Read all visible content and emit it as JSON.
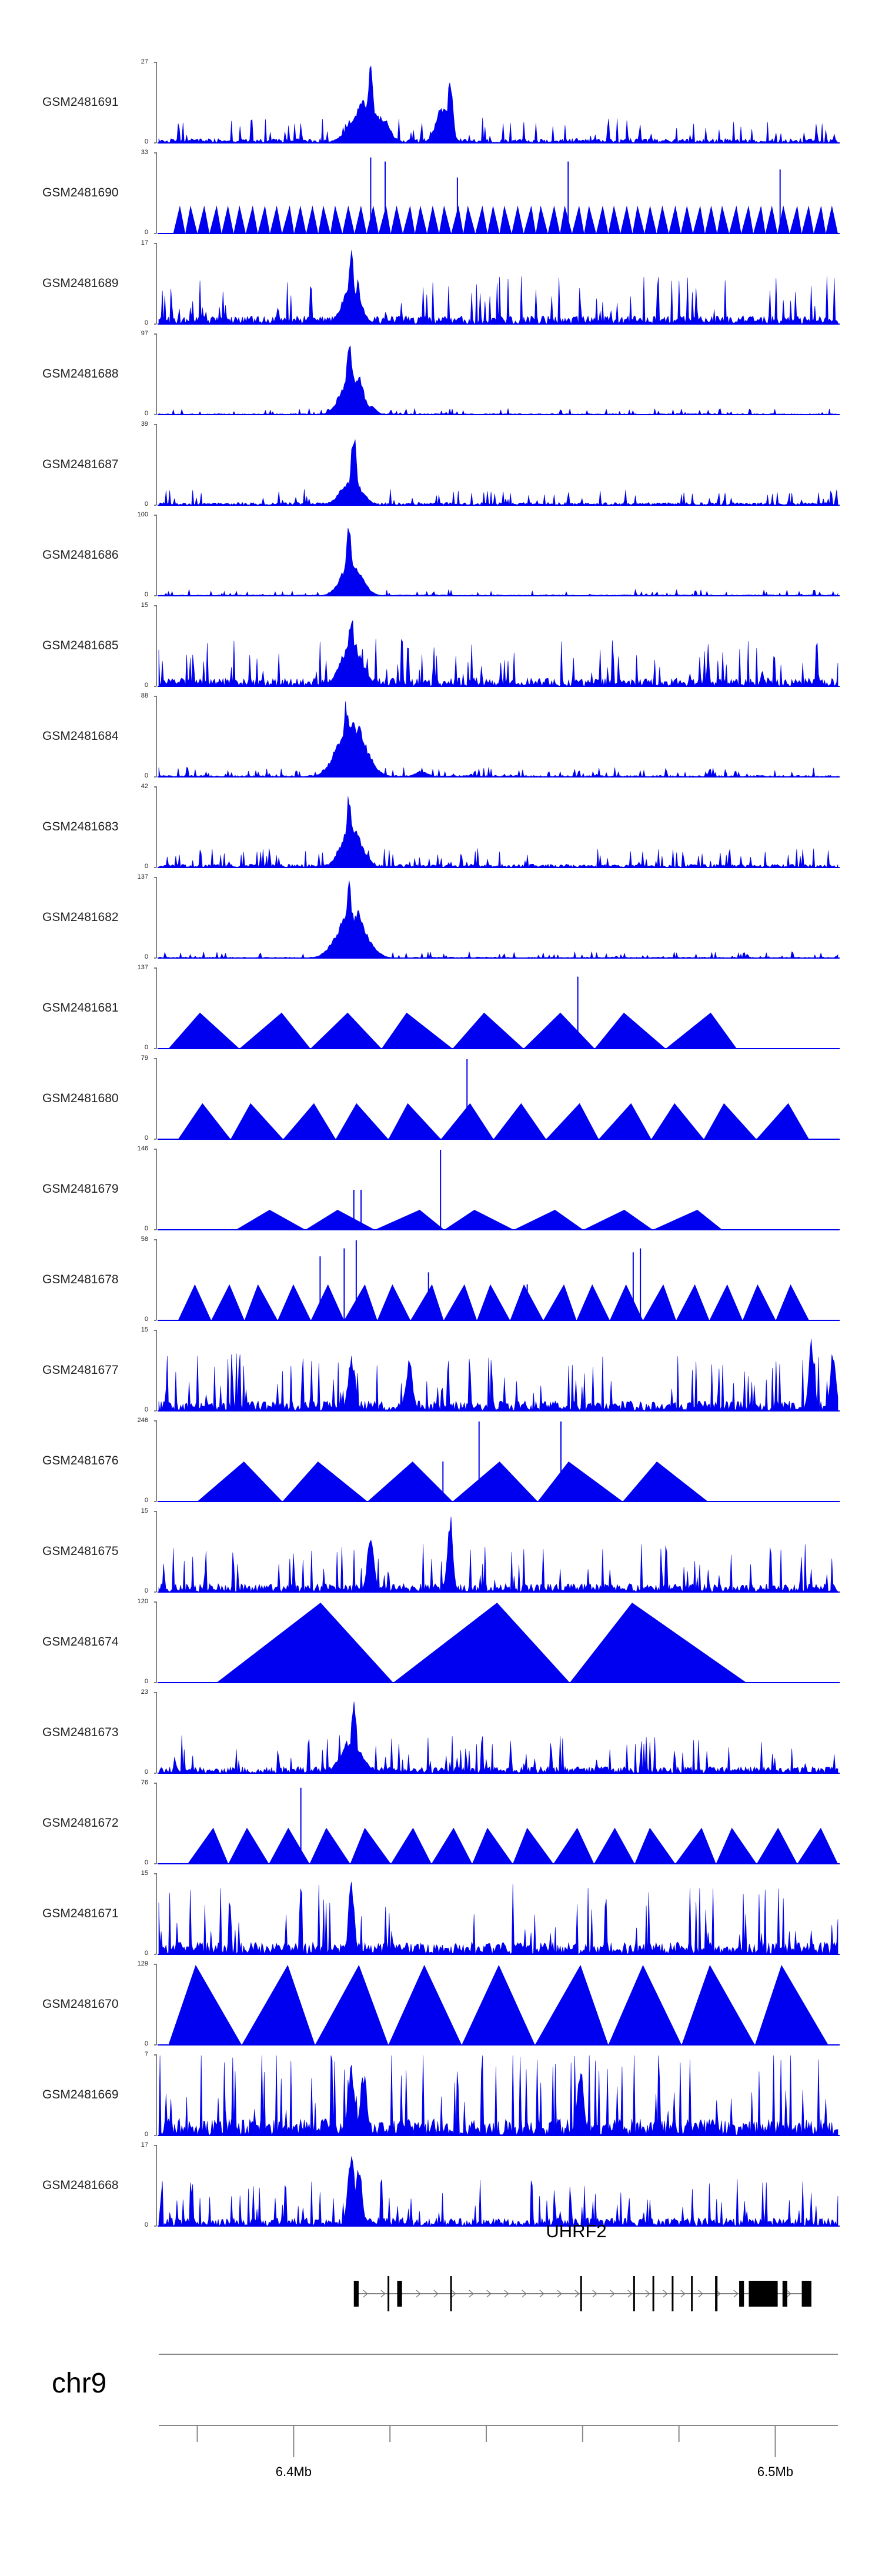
{
  "chart_data": {
    "type": "genome-coverage-tracks",
    "region": {
      "chromosome": "chr9",
      "start_mb": 6.372,
      "end_mb": 6.513
    },
    "tracks": [
      {
        "name": "GSM2481691",
        "ymax": 27,
        "ymin": 0,
        "kind": "noise",
        "base": 0.08,
        "peaks": [
          [
            6.415,
            0.55,
            0.004
          ],
          [
            6.416,
            1.0,
            0.0008
          ],
          [
            6.4185,
            0.35,
            0.002
          ],
          [
            6.431,
            0.5,
            0.002
          ],
          [
            6.4325,
            0.82,
            0.0008
          ]
        ]
      },
      {
        "name": "GSM2481690",
        "ymax": 33,
        "ymin": 0,
        "kind": "triangles",
        "tri_n": 55,
        "tri_h": 0.35,
        "start": 6.375,
        "end": 6.513,
        "spikes": [
          [
            6.416,
            0.95
          ],
          [
            6.419,
            0.9
          ],
          [
            6.434,
            0.7
          ],
          [
            6.457,
            0.9
          ],
          [
            6.501,
            0.8
          ]
        ]
      },
      {
        "name": "GSM2481689",
        "ymax": 17,
        "ymin": 0,
        "kind": "noise",
        "base": 0.15,
        "peaks": [
          [
            6.412,
            0.55,
            0.0025
          ],
          [
            6.412,
            1.0,
            0.0008
          ]
        ]
      },
      {
        "name": "GSM2481688",
        "ymax": 97,
        "ymin": 0,
        "kind": "noise",
        "base": 0.02,
        "peaks": [
          [
            6.412,
            0.55,
            0.003
          ],
          [
            6.4115,
            1.0,
            0.0008
          ],
          [
            6.4135,
            0.5,
            0.0015
          ],
          [
            6.416,
            0.12,
            0.0015
          ]
        ]
      },
      {
        "name": "GSM2481687",
        "ymax": 39,
        "ymin": 0,
        "kind": "noise",
        "base": 0.05,
        "peaks": [
          [
            6.412,
            0.35,
            0.003
          ],
          [
            6.4125,
            1.0,
            0.0008
          ]
        ]
      },
      {
        "name": "GSM2481686",
        "ymax": 100,
        "ymin": 0,
        "kind": "noise",
        "base": 0.02,
        "peaks": [
          [
            6.412,
            0.45,
            0.003
          ],
          [
            6.4115,
            1.0,
            0.0008
          ],
          [
            6.4135,
            0.35,
            0.0015
          ]
        ]
      },
      {
        "name": "GSM2481685",
        "ymax": 15,
        "ymin": 0,
        "kind": "noise",
        "base": 0.15,
        "peaks": [
          [
            6.412,
            0.6,
            0.003
          ],
          [
            6.412,
            1.0,
            0.0008
          ]
        ]
      },
      {
        "name": "GSM2481684",
        "ymax": 88,
        "ymin": 0,
        "kind": "noise",
        "base": 0.03,
        "peaks": [
          [
            6.412,
            0.75,
            0.004
          ],
          [
            6.411,
            1.0,
            0.001
          ],
          [
            6.4135,
            0.65,
            0.0015
          ],
          [
            6.416,
            0.12,
            0.0015
          ],
          [
            6.4265,
            0.07,
            0.002
          ]
        ]
      },
      {
        "name": "GSM2481683",
        "ymax": 42,
        "ymin": 0,
        "kind": "noise",
        "base": 0.06,
        "peaks": [
          [
            6.412,
            0.55,
            0.003
          ],
          [
            6.4115,
            1.0,
            0.0008
          ]
        ]
      },
      {
        "name": "GSM2481682",
        "ymax": 137,
        "ymin": 0,
        "kind": "noise",
        "base": 0.02,
        "peaks": [
          [
            6.412,
            0.6,
            0.004
          ],
          [
            6.4115,
            1.0,
            0.0008
          ],
          [
            6.4135,
            0.65,
            0.0015
          ],
          [
            6.416,
            0.1,
            0.0015
          ]
        ]
      },
      {
        "name": "GSM2481681",
        "ymax": 137,
        "ymin": 0,
        "kind": "triangles",
        "tri_n": 8,
        "tri_h": 0.45,
        "start": 6.374,
        "end": 6.492,
        "spikes": [
          [
            6.459,
            0.9
          ]
        ]
      },
      {
        "name": "GSM2481680",
        "ymax": 79,
        "ymin": 0,
        "kind": "triangles",
        "tri_n": 12,
        "tri_h": 0.45,
        "start": 6.376,
        "end": 6.507,
        "spikes": [
          [
            6.436,
            1.0
          ]
        ]
      },
      {
        "name": "GSM2481679",
        "ymax": 146,
        "ymin": 0,
        "kind": "triangles",
        "tri_n": 7,
        "tri_h": 0.25,
        "start": 6.388,
        "end": 6.489,
        "spikes": [
          [
            6.4125,
            0.5
          ],
          [
            6.414,
            0.5
          ],
          [
            6.4305,
            1.0
          ]
        ]
      },
      {
        "name": "GSM2481678",
        "ymax": 58,
        "ymin": 0,
        "kind": "triangles",
        "tri_n": 19,
        "tri_h": 0.45,
        "start": 6.376,
        "end": 6.507,
        "spikes": [
          [
            6.4055,
            0.8
          ],
          [
            6.4105,
            0.9
          ],
          [
            6.413,
            1.0
          ],
          [
            6.428,
            0.6
          ],
          [
            6.4485,
            0.45
          ],
          [
            6.4705,
            0.85
          ],
          [
            6.472,
            0.9
          ]
        ]
      },
      {
        "name": "GSM2481677",
        "ymax": 15,
        "ymin": 0,
        "kind": "noise",
        "base": 0.18,
        "peaks": [
          [
            6.412,
            0.7,
            0.001
          ],
          [
            6.424,
            0.65,
            0.001
          ],
          [
            6.5075,
            0.95,
            0.0008
          ],
          [
            6.512,
            0.85,
            0.0008
          ]
        ]
      },
      {
        "name": "GSM2481676",
        "ymax": 246,
        "ymin": 0,
        "kind": "triangles",
        "tri_n": 6,
        "tri_h": 0.5,
        "start": 6.38,
        "end": 6.486,
        "spikes": [
          [
            6.431,
            0.5
          ],
          [
            6.4385,
            1.0
          ],
          [
            6.4555,
            1.0
          ]
        ]
      },
      {
        "name": "GSM2481675",
        "ymax": 15,
        "ymin": 0,
        "kind": "noise",
        "base": 0.15,
        "peaks": [
          [
            6.416,
            0.75,
            0.001
          ],
          [
            6.4325,
            1.0,
            0.0008
          ]
        ]
      },
      {
        "name": "GSM2481674",
        "ymax": 120,
        "ymin": 0,
        "kind": "triangles",
        "tri_n": 3,
        "tri_h": 1.0,
        "start": 6.384,
        "end": 6.494,
        "spikes": []
      },
      {
        "name": "GSM2481673",
        "ymax": 23,
        "ymin": 0,
        "kind": "noise",
        "base": 0.12,
        "peaks": [
          [
            6.412,
            0.45,
            0.003
          ],
          [
            6.4125,
            1.0,
            0.0008
          ]
        ]
      },
      {
        "name": "GSM2481672",
        "ymax": 76,
        "ymin": 0,
        "kind": "triangles",
        "tri_n": 16,
        "tri_h": 0.45,
        "start": 6.378,
        "end": 6.513,
        "spikes": [
          [
            6.4015,
            0.95
          ]
        ]
      },
      {
        "name": "GSM2481671",
        "ymax": 15,
        "ymin": 0,
        "kind": "noise",
        "base": 0.22,
        "peaks": [
          [
            6.412,
            1.0,
            0.0008
          ]
        ]
      },
      {
        "name": "GSM2481670",
        "ymax": 129,
        "ymin": 0,
        "kind": "triangles",
        "tri_n": 9,
        "tri_h": 1.0,
        "start": 6.374,
        "end": 6.511,
        "spikes": []
      },
      {
        "name": "GSM2481669",
        "ymax": 7,
        "ymin": 0,
        "kind": "noise",
        "base": 0.3,
        "peaks": [
          [
            6.412,
            0.9,
            0.001
          ],
          [
            6.4145,
            0.85,
            0.001
          ],
          [
            6.4595,
            0.9,
            0.001
          ]
        ]
      },
      {
        "name": "GSM2481668",
        "ymax": 17,
        "ymin": 0,
        "kind": "noise",
        "base": 0.15,
        "peaks": [
          [
            6.412,
            1.0,
            0.001
          ],
          [
            6.4135,
            0.8,
            0.001
          ]
        ]
      }
    ],
    "gene": {
      "name": "UHRF2",
      "start_mb": 6.4125,
      "end_mb": 6.5075,
      "exons": [
        [
          6.4125,
          6.4135
        ],
        [
          6.4195,
          6.4198
        ],
        [
          6.4215,
          6.4225
        ],
        [
          6.4325,
          6.4328
        ],
        [
          6.4595,
          6.4598
        ],
        [
          6.4705,
          6.4708
        ],
        [
          6.4745,
          6.4748
        ],
        [
          6.4785,
          6.4788
        ],
        [
          6.4825,
          6.4828
        ],
        [
          6.4875,
          6.488
        ],
        [
          6.4925,
          6.4935
        ],
        [
          6.4945,
          6.5005
        ],
        [
          6.5015,
          6.5025
        ],
        [
          6.5055,
          6.5075
        ]
      ]
    },
    "axis": {
      "chromosome_label": "chr9",
      "major_ticks": [
        6.4,
        6.5
      ],
      "major_tick_labels": [
        "6.4Mb",
        "6.5Mb"
      ],
      "minor_ticks": [
        6.38,
        6.42,
        6.44,
        6.46,
        6.48
      ]
    },
    "colors": {
      "signal": "#0000f0",
      "gene": "#000000",
      "axis": "#888888"
    }
  }
}
